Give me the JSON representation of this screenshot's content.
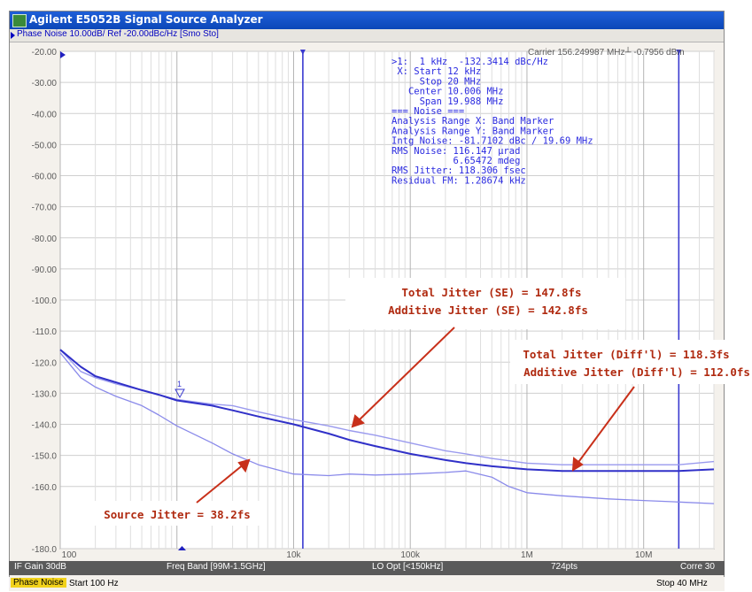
{
  "window": {
    "title": "Agilent E5052B Signal Source Analyzer"
  },
  "trace_header": "Phase Noise 10.00dB/ Ref -20.00dBc/Hz [Smo Sto]",
  "carrier_readout": "Carrier 156.249987 MHz┴ -0.7956 dBm",
  "marker_readout": [
    ">1:  1 kHz  -132.3414 dBc/Hz",
    " X: Start 12 kHz",
    "     Stop 20 MHz",
    "   Center 10.006 MHz",
    "     Span 19.988 MHz",
    "=== Noise ===",
    "Analysis Range X: Band Marker",
    "Analysis Range Y: Band Marker",
    "Intg Noise: -81.7102 dBc / 19.69 MHz",
    "RMS Noise: 116.147 µrad",
    "           6.65472 mdeg",
    "RMS Jitter: 118.306 fsec",
    "Residual FM: 1.28674 kHz"
  ],
  "marker_label": "1",
  "callouts": {
    "se_total": "Total Jitter (SE) = 147.8fs",
    "se_additive": "Additive Jitter (SE) = 142.8fs",
    "diff_total": "Total Jitter (Diff'l) = 118.3fs",
    "diff_additive": "Additive Jitter (Diff'l) = 112.0fs",
    "source": "Source Jitter = 38.2fs"
  },
  "status_bar": {
    "if_gain": "IF Gain 30dB",
    "freq_band": "Freq Band [99M-1.5GHz]",
    "lo_opt": "LO Opt [<150kHz]",
    "points": "724pts",
    "corre": "Corre 30"
  },
  "bottom_bar": {
    "mode": "Phase Noise",
    "start": "Start 100 Hz",
    "stop": "Stop 40 MHz"
  },
  "colors": {
    "trace_se": "#9a9aee",
    "trace_diff": "#3030c8",
    "trace_source": "#8a8aea",
    "band_marker": "#3a3ad0",
    "arrow": "#c8301a"
  },
  "chart_data": {
    "type": "line",
    "title": "",
    "xlabel": "",
    "ylabel": "",
    "x_scale": "log",
    "xlim": [
      100,
      40000000
    ],
    "ylim": [
      -180,
      -20
    ],
    "y_ticks": [
      -20,
      -30,
      -40,
      -50,
      -60,
      -70,
      -80,
      -90,
      -100,
      -110,
      -120,
      -130,
      -140,
      -150,
      -160,
      -180
    ],
    "y_tick_labels": [
      "-20.00",
      "-30.00",
      "-40.00",
      "-50.00",
      "-60.00",
      "-70.00",
      "-80.00",
      "-90.00",
      "-100.0",
      "-110.0",
      "-120.0",
      "-130.0",
      "-140.0",
      "-150.0",
      "-160.0",
      "-180.0"
    ],
    "x_ticks": [
      100,
      10000,
      100000,
      1000000,
      10000000
    ],
    "x_tick_labels": [
      "100",
      "10k",
      "100k",
      "1M",
      "10M"
    ],
    "grid": true,
    "band_markers_hz": [
      12000,
      20000000
    ],
    "series": [
      {
        "x": [
          100,
          150,
          200,
          300,
          500,
          700,
          1000,
          2000,
          3000,
          5000,
          10000,
          20000,
          30000,
          50000,
          100000,
          200000,
          300000,
          500000,
          1000000,
          2000000,
          5000000,
          10000000,
          20000000,
          40000000
        ],
        "values": [
          -116,
          -123,
          -125,
          -127,
          -129,
          -130.5,
          -132,
          -133.5,
          -134,
          -136,
          -138.5,
          -140.5,
          -142,
          -143.5,
          -146,
          -148.5,
          -149.5,
          -151,
          -152.5,
          -153,
          -153,
          -153,
          -153,
          -152
        ]
      },
      {
        "x": [
          100,
          150,
          200,
          300,
          500,
          700,
          1000,
          2000,
          3000,
          5000,
          10000,
          20000,
          30000,
          50000,
          100000,
          200000,
          300000,
          500000,
          1000000,
          2000000,
          5000000,
          10000000,
          20000000,
          40000000
        ],
        "values": [
          -116,
          -121.5,
          -124.5,
          -126.5,
          -129,
          -130.5,
          -132.3,
          -134,
          -135.5,
          -137.5,
          -140,
          -143,
          -145,
          -147,
          -149.5,
          -151.5,
          -152.5,
          -153.5,
          -154.5,
          -155,
          -155,
          -155,
          -155,
          -154.5
        ]
      },
      {
        "x": [
          100,
          150,
          200,
          300,
          500,
          700,
          1000,
          2000,
          3000,
          5000,
          10000,
          20000,
          30000,
          50000,
          100000,
          200000,
          300000,
          500000,
          700000,
          1000000,
          2000000,
          5000000,
          10000000,
          20000000,
          40000000
        ],
        "values": [
          -117,
          -125,
          -128,
          -131,
          -134,
          -137,
          -140.5,
          -146,
          -149.5,
          -153,
          -156,
          -156.5,
          -156,
          -156.3,
          -156,
          -155.5,
          -155,
          -157,
          -160,
          -162,
          -163,
          -164,
          -164.5,
          -165,
          -165.5
        ]
      }
    ]
  }
}
